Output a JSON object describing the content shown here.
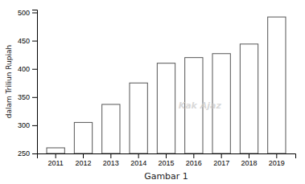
{
  "chart_data": {
    "type": "bar",
    "categories": [
      "2011",
      "2012",
      "2013",
      "2014",
      "2015",
      "2016",
      "2017",
      "2018",
      "2019"
    ],
    "values": [
      260,
      305,
      337,
      375,
      410,
      420,
      427,
      444,
      492
    ],
    "color": "#ffffff",
    "ylabel": "dalam Triliun Rupiah",
    "xlabel": "Gambar 1",
    "ylim": [
      250,
      505
    ],
    "yticks": [
      250,
      300,
      350,
      400,
      450,
      500
    ],
    "annotations": [
      "Kak Ajaz"
    ],
    "grid": false
  }
}
